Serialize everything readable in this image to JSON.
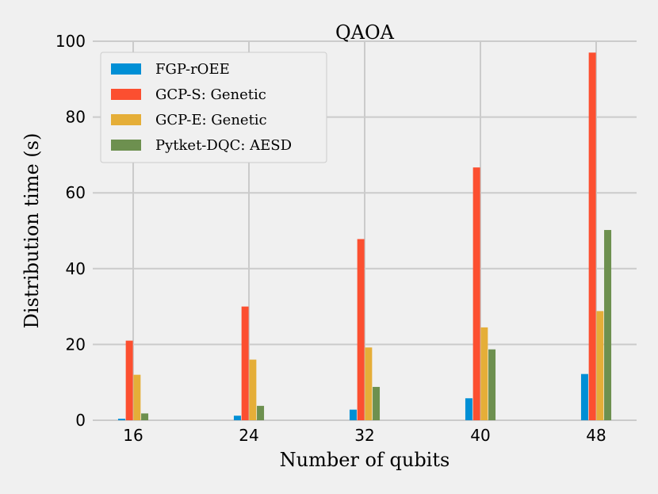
{
  "chart_data": {
    "type": "bar",
    "title": "QAOA",
    "xlabel": "Number of qubits",
    "ylabel": "Distribution time (s)",
    "categories": [
      "16",
      "24",
      "32",
      "40",
      "48"
    ],
    "ylim": [
      0,
      100
    ],
    "yticks": [
      "0",
      "20",
      "40",
      "60",
      "80",
      "100"
    ],
    "grid": true,
    "legend_position": "top-left",
    "series": [
      {
        "name": "FGP-rOEE",
        "color": "#008fd5",
        "values": [
          0.4,
          1.2,
          2.8,
          5.8,
          12.2
        ]
      },
      {
        "name": "GCP-S: Genetic",
        "color": "#fc4f30",
        "values": [
          21.0,
          30.0,
          47.8,
          66.7,
          97.0
        ]
      },
      {
        "name": "GCP-E: Genetic",
        "color": "#e5ae38",
        "values": [
          12.0,
          16.0,
          19.2,
          24.5,
          28.8
        ]
      },
      {
        "name": "Pytket-DQC: AESD",
        "color": "#6d904f",
        "values": [
          1.8,
          3.8,
          8.8,
          18.7,
          50.2
        ]
      }
    ]
  }
}
